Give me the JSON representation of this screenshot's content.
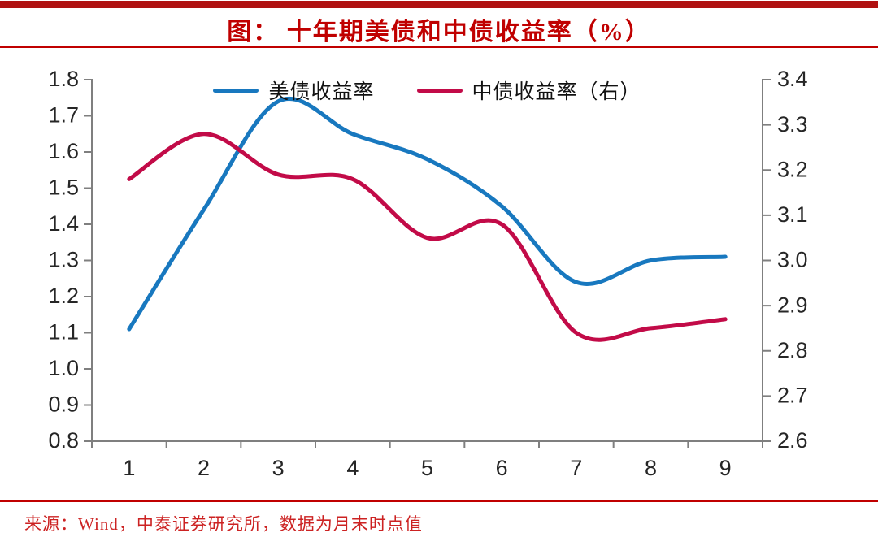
{
  "page": {
    "title": "图：  十年期美债和中债收益率（%）",
    "source": "来源：Wind，中泰证券研究所，数据为月末时点值"
  },
  "colors": {
    "us_line": "#1878bf",
    "cn_line": "#c20b48",
    "top_bar": "#b01111",
    "title_red": "#c00000",
    "rule_red": "#c00000",
    "source_red": "#cc2222",
    "axis_gray": "#7f7f7f",
    "tick_text": "#262626"
  },
  "chart_data": {
    "type": "line",
    "title": "图：十年期美债和中债收益率（%）",
    "x": [
      1,
      2,
      3,
      4,
      5,
      6,
      7,
      8,
      9
    ],
    "x_tick_labels": [
      "1",
      "2",
      "3",
      "4",
      "5",
      "6",
      "7",
      "8",
      "9"
    ],
    "series": [
      {
        "name": "美债收益率",
        "axis": "left",
        "color": "#1878bf",
        "values": [
          1.11,
          1.44,
          1.74,
          1.65,
          1.58,
          1.45,
          1.24,
          1.3,
          1.31
        ]
      },
      {
        "name": "中债收益率（右）",
        "axis": "right",
        "color": "#c20b48",
        "values": [
          3.18,
          3.28,
          3.19,
          3.18,
          3.05,
          3.08,
          2.84,
          2.85,
          2.87
        ]
      }
    ],
    "left_axis": {
      "min": 0.8,
      "max": 1.8,
      "step": 0.1,
      "tick_labels": [
        "1.8",
        "1.7",
        "1.6",
        "1.5",
        "1.4",
        "1.3",
        "1.2",
        "1.1",
        "1.0",
        "0.9",
        "0.8"
      ]
    },
    "right_axis": {
      "min": 2.6,
      "max": 3.4,
      "step": 0.1,
      "tick_labels": [
        "3.4",
        "3.3",
        "3.2",
        "3.1",
        "3.0",
        "2.9",
        "2.8",
        "2.7",
        "2.6"
      ]
    },
    "grid": false,
    "smooth": true,
    "legend_position": "top-center"
  }
}
